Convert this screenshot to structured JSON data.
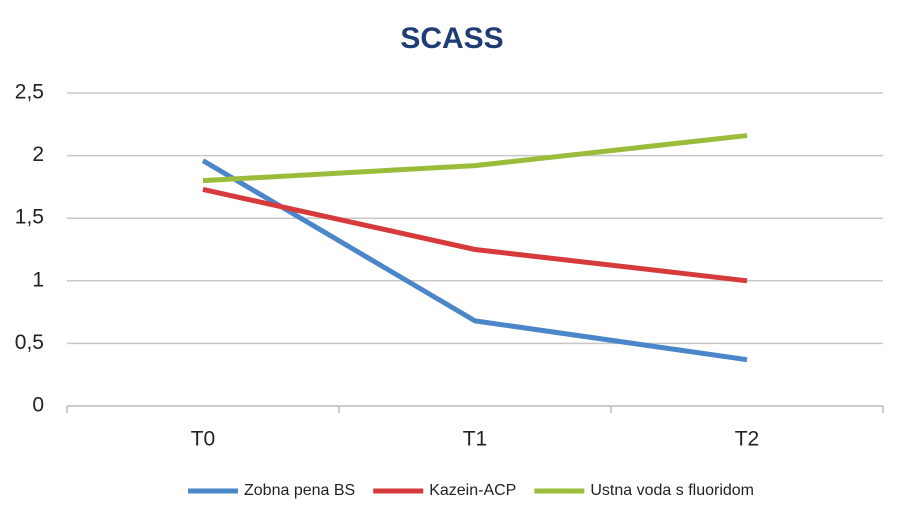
{
  "chart_data": {
    "type": "line",
    "title": "SCASS",
    "categories": [
      "T0",
      "T1",
      "T2"
    ],
    "series": [
      {
        "name": "Zobna pena BS",
        "color": "#4a86c8",
        "values": [
          1.96,
          0.68,
          0.37
        ]
      },
      {
        "name": "Kazein-ACP",
        "color": "#d63a3a",
        "values": [
          1.73,
          1.25,
          1.0
        ]
      },
      {
        "name": "Ustna voda s fluoridom",
        "color": "#9bbb3b",
        "values": [
          1.8,
          1.92,
          2.16
        ]
      }
    ],
    "ylim": [
      0,
      2.5
    ],
    "yticks": [
      0,
      {
        "value": 0.5,
        "label": "0,5"
      },
      1,
      {
        "value": 1.5,
        "label": "1,5"
      },
      2,
      {
        "value": 2.5,
        "label": "2,5"
      }
    ],
    "grid": true,
    "legend": "bottom"
  }
}
